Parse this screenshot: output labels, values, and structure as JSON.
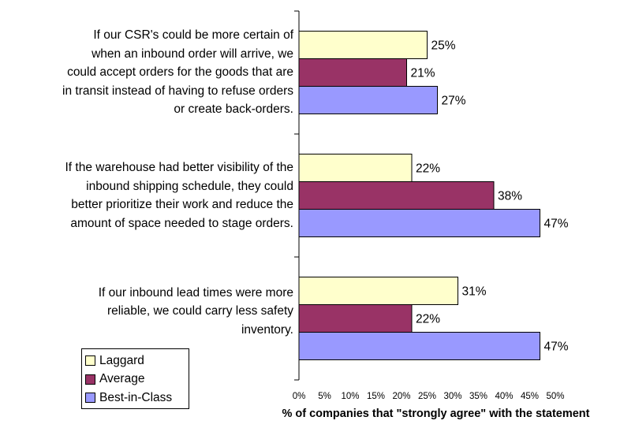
{
  "chart_data": {
    "type": "bar",
    "orientation": "horizontal",
    "categories": [
      "If our CSR's could be more certain of when an inbound order will arrive, we could accept orders for the goods that are in transit instead of having to refuse orders or create back-orders.",
      "If the warehouse had better visibility of the inbound shipping schedule, they could better prioritize their work and reduce the amount of space needed to stage orders.",
      "If our inbound lead times were more reliable, we could carry less safety inventory."
    ],
    "category_lines": [
      [
        "If our CSR's could be more certain of",
        "when an inbound order will arrive, we",
        "could accept orders for the goods that are",
        "in transit instead of having to refuse orders",
        "or create back-orders."
      ],
      [
        "If the warehouse had better visibility of the",
        "inbound shipping schedule, they could",
        "better prioritize their work and reduce the",
        "amount of space needed to stage orders."
      ],
      [
        "If our inbound lead times were more",
        "reliable, we could carry less safety",
        "inventory."
      ]
    ],
    "series": [
      {
        "name": "Laggard",
        "color": "#FFFFCC",
        "values": [
          25,
          22,
          31
        ],
        "labels": [
          "25%",
          "22%",
          "31%"
        ]
      },
      {
        "name": "Average",
        "color": "#993366",
        "values": [
          21,
          38,
          22
        ],
        "labels": [
          "21%",
          "38%",
          "22%"
        ]
      },
      {
        "name": "Best-in-Class",
        "color": "#9999FF",
        "values": [
          27,
          47,
          47
        ],
        "labels": [
          "27%",
          "47%",
          "47%"
        ]
      }
    ],
    "xlim": [
      0,
      50
    ],
    "xticks": [
      "0%",
      "5%",
      "10%",
      "15%",
      "20%",
      "25%",
      "30%",
      "35%",
      "40%",
      "45%",
      "50%"
    ],
    "xlabel": "% of companies that \"strongly agree\" with the statement",
    "ylabel": "",
    "grid": false,
    "legend_position": "bottom-left"
  }
}
